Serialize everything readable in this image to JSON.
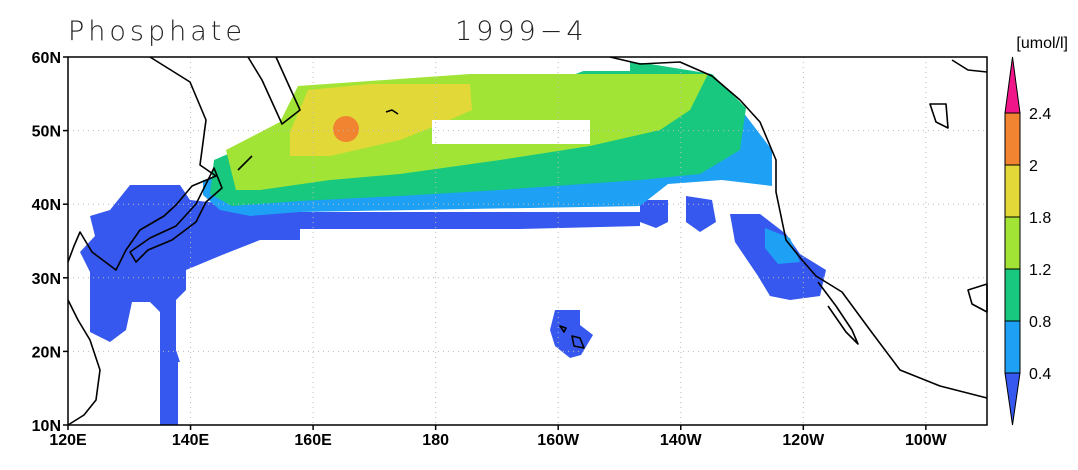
{
  "header": {
    "title": "Phosphate",
    "period": "1999−4",
    "unit": "[umol/l]"
  },
  "map": {
    "lat_labels": [
      "10N",
      "20N",
      "30N",
      "40N",
      "50N",
      "60N"
    ],
    "lon_labels": [
      "120E",
      "140E",
      "160E",
      "180",
      "160W",
      "140W",
      "120W",
      "100W"
    ]
  },
  "colorbar": {
    "labels": [
      "0.4",
      "0.8",
      "1.2",
      "1.8",
      "2",
      "2.4"
    ],
    "colors": [
      "#3658ee",
      "#1ea0f5",
      "#18c87e",
      "#a2e436",
      "#e2d838",
      "#f08430",
      "#f0168a"
    ]
  }
}
